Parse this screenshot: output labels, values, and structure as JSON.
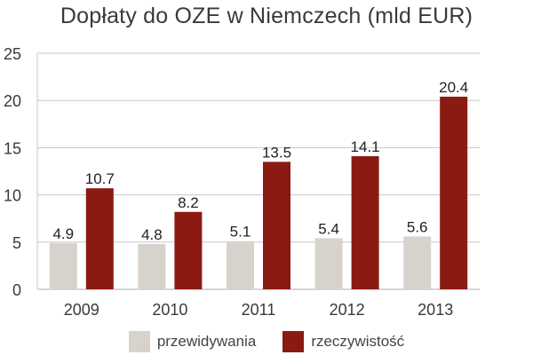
{
  "title": "Dopłaty do OZE w Niemczech (mld EUR)",
  "colors": {
    "forecast": "#d7d3cc",
    "actual": "#8b1a12",
    "grid": "#c8c8c8",
    "text": "#3a3a3a"
  },
  "chart_data": {
    "type": "bar",
    "title": "Dopłaty do OZE w Niemczech (mld EUR)",
    "categories": [
      "2009",
      "2010",
      "2011",
      "2012",
      "2013"
    ],
    "series": [
      {
        "name": "przewidywania",
        "values": [
          4.9,
          4.8,
          5.1,
          5.4,
          5.6
        ]
      },
      {
        "name": "rzeczywistość",
        "values": [
          10.7,
          8.2,
          13.5,
          14.1,
          20.4
        ]
      }
    ],
    "ylim": [
      0,
      25
    ],
    "yticks": [
      0,
      5,
      10,
      15,
      20,
      25
    ],
    "grid": true,
    "legend": "bottom-center"
  }
}
